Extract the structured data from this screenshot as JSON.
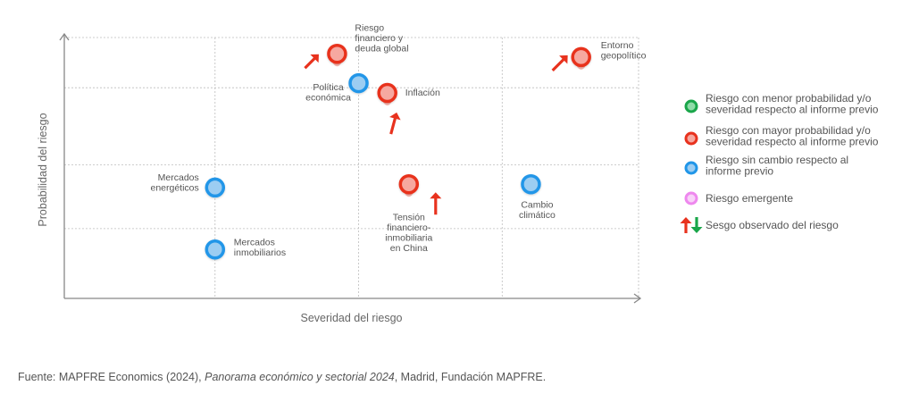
{
  "chart_data": {
    "type": "scatter",
    "title": "",
    "xlabel": "Severidad del riesgo",
    "ylabel": "Probabilidad del riesgo",
    "xlim": [
      0,
      4
    ],
    "ylim": [
      0,
      4
    ],
    "grid": true,
    "legend_position": "right",
    "points": [
      {
        "label": [
          "Riesgo",
          "financiero y",
          "deuda global"
        ],
        "x": 1.9,
        "y": 3.75,
        "category": "mayor",
        "trend": "up-right"
      },
      {
        "label": [
          "Entorno",
          "geopolítico"
        ],
        "x": 3.6,
        "y": 3.7,
        "category": "mayor",
        "trend": "up-right"
      },
      {
        "label": [
          "Política",
          "económica"
        ],
        "x": 2.05,
        "y": 3.3,
        "category": "sin-cambio",
        "trend": ""
      },
      {
        "label": [
          "Inflación"
        ],
        "x": 2.25,
        "y": 3.15,
        "category": "mayor",
        "trend": "up"
      },
      {
        "label": [
          "Mercados",
          "energéticos"
        ],
        "x": 1.05,
        "y": 1.7,
        "category": "sin-cambio",
        "trend": ""
      },
      {
        "label": [
          "Tensión",
          "financiero-",
          "inmobiliaria",
          "en China"
        ],
        "x": 2.4,
        "y": 1.75,
        "category": "mayor",
        "trend": "up"
      },
      {
        "label": [
          "Cambio",
          "climático"
        ],
        "x": 3.25,
        "y": 1.75,
        "category": "sin-cambio",
        "trend": ""
      },
      {
        "label": [
          "Mercados",
          "inmobiliarios"
        ],
        "x": 1.05,
        "y": 0.75,
        "category": "sin-cambio",
        "trend": ""
      }
    ],
    "legend": [
      {
        "category": "menor",
        "text": [
          "Riesgo con menor probabilidad y/o",
          "severidad respecto al informe previo"
        ]
      },
      {
        "category": "mayor",
        "text": [
          "Riesgo con mayor probabilidad y/o",
          "severidad respecto al informe previo"
        ]
      },
      {
        "category": "sin-cambio",
        "text": [
          "Riesgo sin cambio respecto al",
          "informe previo"
        ]
      },
      {
        "category": "emergente",
        "text": [
          "Riesgo emergente"
        ]
      },
      {
        "category": "sesgo",
        "text": [
          "Sesgo observado del riesgo"
        ]
      }
    ]
  },
  "colors": {
    "mayor_ring": "#e8321e",
    "mayor_fill": "#f6a8a0",
    "sin_cambio_ring": "#2196e8",
    "sin_cambio_fill": "#9ccdf2",
    "menor_ring": "#1aa64a",
    "menor_fill": "#8fdca8",
    "emergente_ring": "#ee88ee",
    "emergente_fill": "#f8d2f8",
    "arrow_up": "#e8321e",
    "arrow_down": "#1aa64a"
  },
  "source": {
    "prefix": "Fuente: MAPFRE Economics (2024), ",
    "title": "Panorama económico y sectorial 2024",
    "suffix": ", Madrid, Fundación MAPFRE."
  }
}
